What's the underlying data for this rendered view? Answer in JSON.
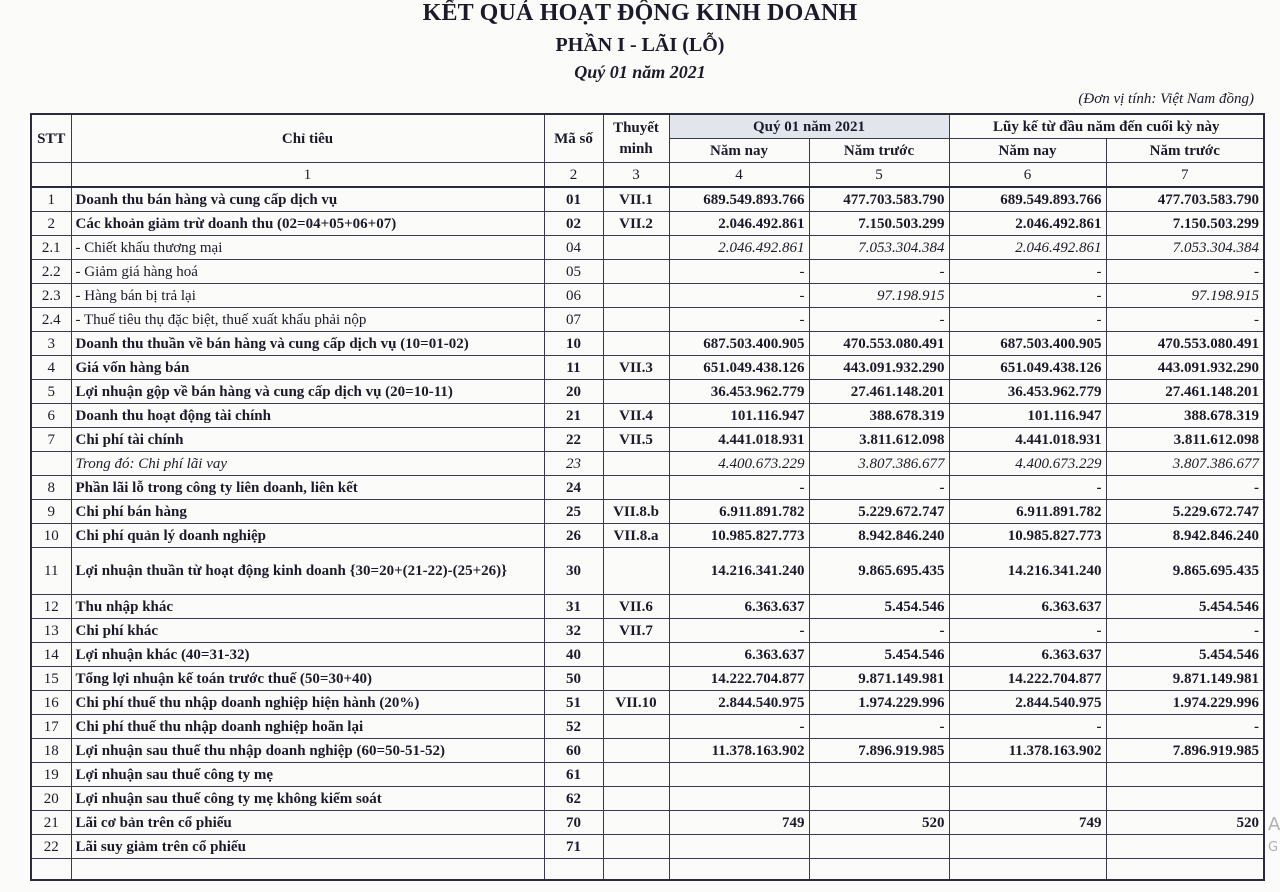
{
  "header": {
    "title": "KẾT QUẢ HOẠT ĐỘNG KINH DOANH",
    "subtitle": "PHẦN I - LÃI (LỖ)",
    "period": "Quý 01 năm 2021",
    "unit": "(Đơn vị tính: Việt Nam đồng)"
  },
  "columns": {
    "stt": "STT",
    "indicator": "Chỉ tiêu",
    "code": "Mã số",
    "note": "Thuyết minh",
    "quarter_group": "Quý 01 năm 2021",
    "ytd_group": "Lũy kế từ đầu năm đến cuối kỳ này",
    "this_year": "Năm nay",
    "last_year": "Năm trước",
    "numbers": [
      "1",
      "2",
      "3",
      "4",
      "5",
      "6",
      "7"
    ]
  },
  "rows": [
    {
      "stt": "1",
      "label": "Doanh thu bán hàng và cung cấp dịch vụ",
      "code": "01",
      "note": "VII.1",
      "q_now": "689.549.893.766",
      "q_prev": "477.703.583.790",
      "ytd_now": "689.549.893.766",
      "ytd_prev": "477.703.583.790",
      "style": "bold"
    },
    {
      "stt": "2",
      "label": "Các khoản giảm trừ doanh thu (02=04+05+06+07)",
      "code": "02",
      "note": "VII.2",
      "q_now": "2.046.492.861",
      "q_prev": "7.150.503.299",
      "ytd_now": "2.046.492.861",
      "ytd_prev": "7.150.503.299",
      "style": "bold"
    },
    {
      "stt": "2.1",
      "label": " - Chiết khấu thương mại",
      "code": "04",
      "note": "",
      "q_now": "2.046.492.861",
      "q_prev": "7.053.304.384",
      "ytd_now": "2.046.492.861",
      "ytd_prev": "7.053.304.384",
      "style": "sub"
    },
    {
      "stt": "2.2",
      "label": " - Giảm giá hàng hoá",
      "code": "05",
      "note": "",
      "q_now": "-",
      "q_prev": "-",
      "ytd_now": "-",
      "ytd_prev": "-",
      "style": "sub"
    },
    {
      "stt": "2.3",
      "label": " - Hàng bán bị trả lại",
      "code": "06",
      "note": "",
      "q_now": "-",
      "q_prev": "97.198.915",
      "ytd_now": "-",
      "ytd_prev": "97.198.915",
      "style": "sub"
    },
    {
      "stt": "2.4",
      "label": " - Thuế tiêu thụ đặc biệt, thuế xuất khẩu phải nộp",
      "code": "07",
      "note": "",
      "q_now": "-",
      "q_prev": "-",
      "ytd_now": "-",
      "ytd_prev": "-",
      "style": "sub"
    },
    {
      "stt": "3",
      "label": "Doanh thu thuần về bán hàng và cung cấp dịch vụ (10=01-02)",
      "code": "10",
      "note": "",
      "q_now": "687.503.400.905",
      "q_prev": "470.553.080.491",
      "ytd_now": "687.503.400.905",
      "ytd_prev": "470.553.080.491",
      "style": "bold"
    },
    {
      "stt": "4",
      "label": "Giá vốn hàng bán",
      "code": "11",
      "note": "VII.3",
      "q_now": "651.049.438.126",
      "q_prev": "443.091.932.290",
      "ytd_now": "651.049.438.126",
      "ytd_prev": "443.091.932.290",
      "style": "bold"
    },
    {
      "stt": "5",
      "label": "Lợi nhuận gộp về bán hàng và cung cấp dịch vụ (20=10-11)",
      "code": "20",
      "note": "",
      "q_now": "36.453.962.779",
      "q_prev": "27.461.148.201",
      "ytd_now": "36.453.962.779",
      "ytd_prev": "27.461.148.201",
      "style": "bold"
    },
    {
      "stt": "6",
      "label": "Doanh thu hoạt động tài chính",
      "code": "21",
      "note": "VII.4",
      "q_now": "101.116.947",
      "q_prev": "388.678.319",
      "ytd_now": "101.116.947",
      "ytd_prev": "388.678.319",
      "style": "bold"
    },
    {
      "stt": "7",
      "label": "Chi phí tài chính",
      "code": "22",
      "note": "VII.5",
      "q_now": "4.441.018.931",
      "q_prev": "3.811.612.098",
      "ytd_now": "4.441.018.931",
      "ytd_prev": "3.811.612.098",
      "style": "bold"
    },
    {
      "stt": "",
      "label": "Trong đó: Chi phí lãi vay",
      "code": "23",
      "note": "",
      "q_now": "4.400.673.229",
      "q_prev": "3.807.386.677",
      "ytd_now": "4.400.673.229",
      "ytd_prev": "3.807.386.677",
      "style": "italic"
    },
    {
      "stt": "8",
      "label": "Phần lãi lỗ trong công ty liên doanh, liên kết",
      "code": "24",
      "note": "",
      "q_now": "-",
      "q_prev": "-",
      "ytd_now": "-",
      "ytd_prev": "-",
      "style": "bold"
    },
    {
      "stt": "9",
      "label": "Chi phí bán hàng",
      "code": "25",
      "note": "VII.8.b",
      "q_now": "6.911.891.782",
      "q_prev": "5.229.672.747",
      "ytd_now": "6.911.891.782",
      "ytd_prev": "5.229.672.747",
      "style": "bold"
    },
    {
      "stt": "10",
      "label": "Chi phí quản lý doanh nghiệp",
      "code": "26",
      "note": "VII.8.a",
      "q_now": "10.985.827.773",
      "q_prev": "8.942.846.240",
      "ytd_now": "10.985.827.773",
      "ytd_prev": "8.942.846.240",
      "style": "bold"
    },
    {
      "stt": "11",
      "label": "Lợi nhuận thuần từ hoạt động kinh doanh {30=20+(21-22)-(25+26)}",
      "code": "30",
      "note": "",
      "q_now": "14.216.341.240",
      "q_prev": "9.865.695.435",
      "ytd_now": "14.216.341.240",
      "ytd_prev": "9.865.695.435",
      "style": "bold tall"
    },
    {
      "stt": "12",
      "label": "Thu nhập khác",
      "code": "31",
      "note": "VII.6",
      "q_now": "6.363.637",
      "q_prev": "5.454.546",
      "ytd_now": "6.363.637",
      "ytd_prev": "5.454.546",
      "style": "bold"
    },
    {
      "stt": "13",
      "label": "Chi phí khác",
      "code": "32",
      "note": "VII.7",
      "q_now": "-",
      "q_prev": "-",
      "ytd_now": "-",
      "ytd_prev": "-",
      "style": "bold"
    },
    {
      "stt": "14",
      "label": "Lợi nhuận khác (40=31-32)",
      "code": "40",
      "note": "",
      "q_now": "6.363.637",
      "q_prev": "5.454.546",
      "ytd_now": "6.363.637",
      "ytd_prev": "5.454.546",
      "style": "bold"
    },
    {
      "stt": "15",
      "label": "Tổng lợi nhuận kế toán trước thuế (50=30+40)",
      "code": "50",
      "note": "",
      "q_now": "14.222.704.877",
      "q_prev": "9.871.149.981",
      "ytd_now": "14.222.704.877",
      "ytd_prev": "9.871.149.981",
      "style": "bold"
    },
    {
      "stt": "16",
      "label": "Chi phí thuế thu nhập doanh nghiệp hiện hành (20%)",
      "code": "51",
      "note": "VII.10",
      "q_now": "2.844.540.975",
      "q_prev": "1.974.229.996",
      "ytd_now": "2.844.540.975",
      "ytd_prev": "1.974.229.996",
      "style": "bold"
    },
    {
      "stt": "17",
      "label": "Chi phí thuế thu nhập doanh nghiệp hoãn lại",
      "code": "52",
      "note": "",
      "q_now": "-",
      "q_prev": "-",
      "ytd_now": "-",
      "ytd_prev": "-",
      "style": "bold"
    },
    {
      "stt": "18",
      "label": "Lợi nhuận sau thuế thu nhập doanh nghiệp (60=50-51-52)",
      "code": "60",
      "note": "",
      "q_now": "11.378.163.902",
      "q_prev": "7.896.919.985",
      "ytd_now": "11.378.163.902",
      "ytd_prev": "7.896.919.985",
      "style": "bold"
    },
    {
      "stt": "19",
      "label": "Lợi nhuận sau thuế công ty mẹ",
      "code": "61",
      "note": "",
      "q_now": "",
      "q_prev": "",
      "ytd_now": "",
      "ytd_prev": "",
      "style": "bold"
    },
    {
      "stt": "20",
      "label": "Lợi nhuận sau thuế công ty mẹ không kiểm soát",
      "code": "62",
      "note": "",
      "q_now": "",
      "q_prev": "",
      "ytd_now": "",
      "ytd_prev": "",
      "style": "bold"
    },
    {
      "stt": "21",
      "label": "Lãi cơ bản trên cổ phiếu",
      "code": "70",
      "note": "",
      "q_now": "749",
      "q_prev": "520",
      "ytd_now": "749",
      "ytd_prev": "520",
      "style": "bold"
    },
    {
      "stt": "22",
      "label": "Lãi suy giảm trên cổ phiếu",
      "code": "71",
      "note": "",
      "q_now": "",
      "q_prev": "",
      "ytd_now": "",
      "ytd_prev": "",
      "style": "bold"
    }
  ],
  "watermark": {
    "line1": "A",
    "line2": "G"
  }
}
